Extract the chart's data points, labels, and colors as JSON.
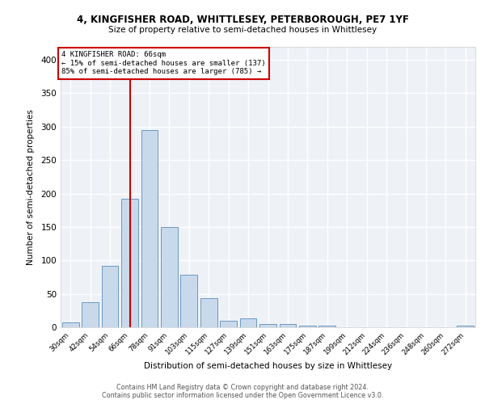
{
  "title_line1": "4, KINGFISHER ROAD, WHITTLESEY, PETERBOROUGH, PE7 1YF",
  "title_line2": "Size of property relative to semi-detached houses in Whittlesey",
  "xlabel": "Distribution of semi-detached houses by size in Whittlesey",
  "ylabel": "Number of semi-detached properties",
  "categories": [
    "30sqm",
    "42sqm",
    "54sqm",
    "66sqm",
    "78sqm",
    "91sqm",
    "103sqm",
    "115sqm",
    "127sqm",
    "139sqm",
    "151sqm",
    "163sqm",
    "175sqm",
    "187sqm",
    "199sqm",
    "212sqm",
    "224sqm",
    "236sqm",
    "248sqm",
    "260sqm",
    "272sqm"
  ],
  "values": [
    7,
    38,
    92,
    192,
    295,
    150,
    78,
    44,
    10,
    13,
    5,
    5,
    3,
    3,
    0,
    0,
    0,
    0,
    0,
    0,
    3
  ],
  "bar_color": "#c9d9ec",
  "bar_edge_color": "#5b8db8",
  "property_line_idx": 3,
  "annotation_title": "4 KINGFISHER ROAD: 66sqm",
  "annotation_line2": "← 15% of semi-detached houses are smaller (137)",
  "annotation_line3": "85% of semi-detached houses are larger (785) →",
  "vline_color": "#cc0000",
  "annotation_box_edgecolor": "#cc0000",
  "ylim": [
    0,
    420
  ],
  "yticks": [
    0,
    50,
    100,
    150,
    200,
    250,
    300,
    350,
    400
  ],
  "footer_line1": "Contains HM Land Registry data © Crown copyright and database right 2024.",
  "footer_line2": "Contains public sector information licensed under the Open Government Licence v3.0.",
  "background_color": "#eef2f7",
  "grid_color": "#ffffff"
}
